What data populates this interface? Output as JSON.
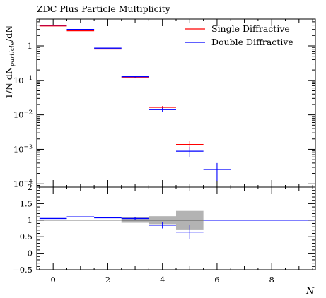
{
  "chart_data": {
    "type": "histogram",
    "title": "ZDC Plus Particle Multiplicity",
    "xlabel": "N",
    "ylabel": "1/N dN/dN_particle",
    "ylabel_parts": {
      "a": "1/N dN",
      "sub": "particle",
      "b": "/dN"
    },
    "log_y": true,
    "ylim": [
      8e-05,
      6
    ],
    "xlim": [
      -0.6,
      9.6
    ],
    "ratio_ylim": [
      -0.5,
      2
    ],
    "grid": false,
    "legend_position": "top-right",
    "main_yticks": [
      {
        "value": 1,
        "base": "1",
        "exp": ""
      },
      {
        "value": 0.1,
        "base": "10",
        "exp": "−1"
      },
      {
        "value": 0.01,
        "base": "10",
        "exp": "−2"
      },
      {
        "value": 0.001,
        "base": "10",
        "exp": "−3"
      },
      {
        "value": 0.0001,
        "base": "10",
        "exp": "−4"
      }
    ],
    "x_tick_labels": [
      "0",
      "2",
      "4",
      "6",
      "8"
    ],
    "ratio_tick_labels": [
      "−0.5",
      "0",
      "0.5",
      "1",
      "1.5",
      "2"
    ],
    "series": [
      {
        "name": "Single Diffractive",
        "color": "#ff0000",
        "bins": [
          {
            "lo": -0.5,
            "hi": 0.5,
            "y": 3.8,
            "err": 0
          },
          {
            "lo": 0.5,
            "hi": 1.5,
            "y": 2.75,
            "err": 0
          },
          {
            "lo": 1.5,
            "hi": 2.5,
            "y": 0.81,
            "err": 0
          },
          {
            "lo": 2.5,
            "hi": 3.5,
            "y": 0.12,
            "err": 0.005
          },
          {
            "lo": 3.5,
            "hi": 4.5,
            "y": 0.0165,
            "err": 0.0015
          },
          {
            "lo": 4.5,
            "hi": 5.5,
            "y": 0.00138,
            "err": 0.0004
          }
        ]
      },
      {
        "name": "Double Diffractive",
        "color": "#0000ff",
        "bins": [
          {
            "lo": -0.5,
            "hi": 0.5,
            "y": 4.0,
            "err": 0
          },
          {
            "lo": 0.5,
            "hi": 1.5,
            "y": 3.0,
            "err": 0
          },
          {
            "lo": 1.5,
            "hi": 2.5,
            "y": 0.86,
            "err": 0
          },
          {
            "lo": 2.5,
            "hi": 3.5,
            "y": 0.128,
            "err": 0.006
          },
          {
            "lo": 3.5,
            "hi": 4.5,
            "y": 0.0142,
            "err": 0.0018
          },
          {
            "lo": 4.5,
            "hi": 5.5,
            "y": 0.00088,
            "err": 0.0003
          },
          {
            "lo": 5.5,
            "hi": 6.5,
            "y": 0.00026,
            "err": 0.00014
          }
        ]
      }
    ],
    "ratio": {
      "reference_band": [
        {
          "lo": 2.5,
          "hi": 3.5,
          "low": 0.92,
          "high": 1.08
        },
        {
          "lo": 3.5,
          "hi": 4.5,
          "low": 0.88,
          "high": 1.12
        },
        {
          "lo": 4.5,
          "hi": 5.5,
          "low": 0.72,
          "high": 1.28
        }
      ],
      "bins": [
        {
          "lo": -0.5,
          "hi": 0.5,
          "y": 1.05,
          "err": 0
        },
        {
          "lo": 0.5,
          "hi": 1.5,
          "y": 1.1,
          "err": 0
        },
        {
          "lo": 1.5,
          "hi": 2.5,
          "y": 1.07,
          "err": 0
        },
        {
          "lo": 2.5,
          "hi": 3.5,
          "y": 1.05,
          "err": 0.04
        },
        {
          "lo": 3.5,
          "hi": 4.5,
          "y": 0.85,
          "err": 0.1
        },
        {
          "lo": 4.5,
          "hi": 5.5,
          "y": 0.64,
          "err": 0.22
        },
        {
          "lo": 5.5,
          "hi": 9.6,
          "y": 1.0,
          "err": 0
        }
      ]
    }
  }
}
